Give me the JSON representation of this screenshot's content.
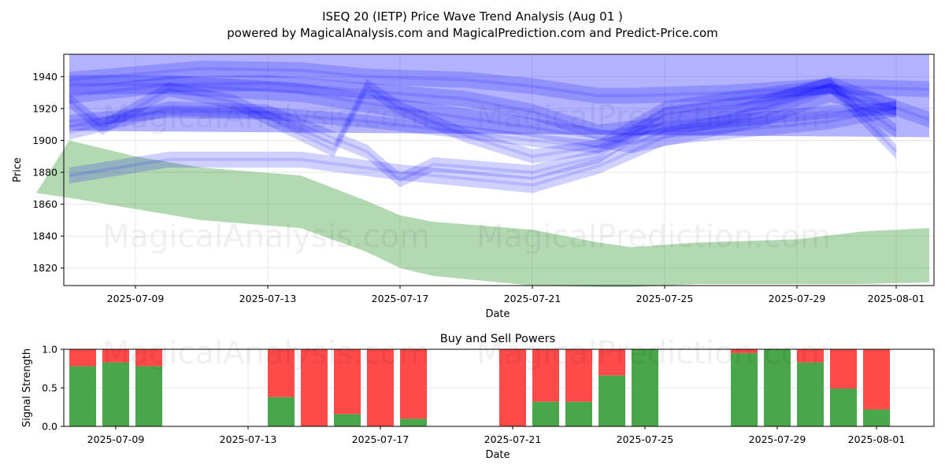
{
  "header": {
    "title": "ISEQ 20 (IETP) Price Wave Trend Analysis (Aug 01 )",
    "subtitle": "powered by MagicalAnalysis.com and MagicalPrediction.com and Predict-Price.com"
  },
  "watermarks": [
    "MagicalAnalysis.com",
    "MagicalPrediction.com"
  ],
  "chart_data": [
    {
      "type": "area",
      "xlabel": "Date",
      "ylabel": "Price",
      "x_ticks": [
        "2025-07-09",
        "2025-07-13",
        "2025-07-17",
        "2025-07-21",
        "2025-07-25",
        "2025-07-29",
        "2025-08-01"
      ],
      "y_ticks": [
        1820,
        1840,
        1860,
        1880,
        1900,
        1920,
        1940
      ],
      "ylim": [
        1809,
        1954
      ],
      "grid": true,
      "green_band": {
        "color": "#008000",
        "x": [
          "2025-07-06",
          "2025-07-07",
          "2025-07-09",
          "2025-07-11",
          "2025-07-14",
          "2025-07-16",
          "2025-07-17",
          "2025-07-18",
          "2025-07-21",
          "2025-07-23",
          "2025-07-24",
          "2025-07-26",
          "2025-07-29",
          "2025-07-31",
          "2025-08-02"
        ],
        "upper": [
          1867,
          1900,
          1890,
          1883,
          1878,
          1862,
          1853,
          1849,
          1844,
          1836,
          1833,
          1836,
          1838,
          1843,
          1845
        ],
        "lower": [
          1867,
          1864,
          1857,
          1850,
          1845,
          1830,
          1820,
          1815,
          1809,
          1808,
          1808,
          1810,
          1810,
          1810,
          1811
        ]
      },
      "blue_waves": [
        {
          "color": "#0000ff",
          "x": [
            "2025-07-07",
            "2025-07-11",
            "2025-07-14",
            "2025-07-16",
            "2025-07-19",
            "2025-07-21",
            "2025-07-23",
            "2025-07-24",
            "2025-07-27",
            "2025-07-30",
            "2025-08-02"
          ],
          "center": [
            1938,
            1945,
            1944,
            1940,
            1938,
            1934,
            1928,
            1928,
            1930,
            1934,
            1932
          ],
          "width": 10
        },
        {
          "color": "#0000ff",
          "x": [
            "2025-07-07",
            "2025-07-10",
            "2025-07-13",
            "2025-07-16",
            "2025-07-19",
            "2025-07-21",
            "2025-07-23",
            "2025-07-25",
            "2025-07-27",
            "2025-07-30",
            "2025-08-02"
          ],
          "center": [
            1928,
            1935,
            1936,
            1931,
            1926,
            1918,
            1905,
            1910,
            1916,
            1935,
            1913
          ],
          "width": 10
        },
        {
          "color": "#0000ff",
          "x": [
            "2025-07-07",
            "2025-07-10",
            "2025-07-13",
            "2025-07-16",
            "2025-07-19",
            "2025-07-21",
            "2025-07-23",
            "2025-07-25",
            "2025-07-27",
            "2025-07-30",
            "2025-08-01"
          ],
          "center": [
            1912,
            1918,
            1917,
            1912,
            1905,
            1900,
            1896,
            1908,
            1912,
            1918,
            1920
          ],
          "width": 8
        },
        {
          "color": "#0000ff",
          "x": [
            "2025-07-07",
            "2025-07-08",
            "2025-07-10",
            "2025-07-12",
            "2025-07-15",
            "2025-07-16",
            "2025-07-17",
            "2025-07-19",
            "2025-07-21",
            "2025-07-23",
            "2025-07-25",
            "2025-07-27",
            "2025-07-30",
            "2025-08-01"
          ],
          "center": [
            1925,
            1908,
            1932,
            1924,
            1894,
            1934,
            1920,
            1903,
            1890,
            1896,
            1920,
            1926,
            1934,
            1906
          ],
          "width": 9
        },
        {
          "color": "#0000ff",
          "x": [
            "2025-07-07",
            "2025-07-10",
            "2025-07-13",
            "2025-07-16",
            "2025-07-17",
            "2025-07-18",
            "2025-07-21",
            "2025-07-23",
            "2025-07-25",
            "2025-07-28",
            "2025-07-30",
            "2025-08-01"
          ],
          "center": [
            1905,
            1920,
            1918,
            1893,
            1875,
            1885,
            1880,
            1890,
            1916,
            1924,
            1935,
            1893
          ],
          "width": 9
        },
        {
          "color": "#0000ff",
          "x": [
            "2025-07-07",
            "2025-07-10",
            "2025-07-14",
            "2025-07-17",
            "2025-07-21",
            "2025-07-23",
            "2025-07-25",
            "2025-07-28",
            "2025-07-30",
            "2025-08-01"
          ],
          "center": [
            1878,
            1888,
            1888,
            1880,
            1872,
            1884,
            1902,
            1908,
            1912,
            1920
          ],
          "width": 10
        },
        {
          "color": "#0000ff",
          "x": [
            "2025-07-07",
            "2025-07-10",
            "2025-07-14",
            "2025-07-17",
            "2025-07-21",
            "2025-07-24",
            "2025-07-28",
            "2025-07-30",
            "2025-08-01"
          ],
          "center": [
            1935,
            1935,
            1930,
            1920,
            1908,
            1898,
            1915,
            1930,
            1920
          ],
          "width": 12
        }
      ],
      "blue_envelope": {
        "x": [
          "2025-07-07",
          "2025-08-02"
        ],
        "upper": [
          1954,
          1954
        ],
        "lower": [
          1906,
          1902
        ]
      }
    },
    {
      "type": "bar",
      "title": "Buy and Sell Powers",
      "xlabel": "Date",
      "ylabel": "Signal Strength",
      "x_ticks": [
        "2025-07-09",
        "2025-07-13",
        "2025-07-17",
        "2025-07-21",
        "2025-07-25",
        "2025-07-29",
        "2025-08-01"
      ],
      "y_ticks": [
        "0.0",
        "0.5",
        "1.0"
      ],
      "ylim": [
        0,
        1
      ],
      "grid": true,
      "colors": {
        "buy": "#4aa64a",
        "sell": "#ff4a4a"
      },
      "series": [
        {
          "name": "Buy",
          "values": [
            0.78,
            0.83,
            0.78,
            0.38,
            0.0,
            0.16,
            0.0,
            0.1,
            0.0,
            0.32,
            0.32,
            0.66,
            1.0,
            0.95,
            1.0,
            0.83,
            0.49,
            0.22
          ]
        },
        {
          "name": "Sell",
          "values": [
            0.22,
            0.17,
            0.22,
            0.62,
            1.0,
            0.84,
            1.0,
            0.9,
            1.0,
            0.68,
            0.68,
            0.34,
            0.0,
            0.05,
            0.0,
            0.17,
            0.51,
            0.78
          ]
        }
      ],
      "categories": [
        "2025-07-08",
        "2025-07-09",
        "2025-07-10",
        "2025-07-14",
        "2025-07-15",
        "2025-07-16",
        "2025-07-17",
        "2025-07-18",
        "2025-07-21",
        "2025-07-22",
        "2025-07-23",
        "2025-07-24",
        "2025-07-25",
        "2025-07-28",
        "2025-07-29",
        "2025-07-30",
        "2025-07-31",
        "2025-08-01"
      ]
    }
  ]
}
